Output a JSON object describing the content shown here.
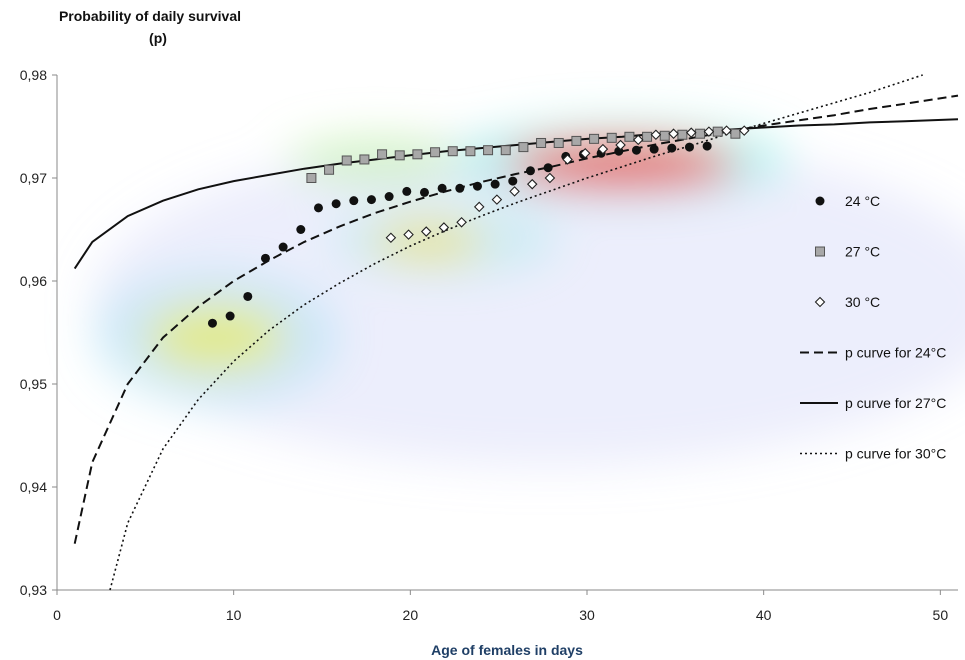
{
  "chart_data": {
    "type": "scatter",
    "title_line1": "Probability of daily survival",
    "title_line2": "(p)",
    "xlabel": "Age of females in days",
    "ylabel": "",
    "xlim": [
      0,
      51
    ],
    "ylim": [
      0.93,
      0.98
    ],
    "x_ticks": [
      0,
      10,
      20,
      30,
      40,
      50
    ],
    "x_tick_labels": [
      "0",
      "10",
      "20",
      "30",
      "40",
      "50"
    ],
    "y_ticks": [
      0.93,
      0.94,
      0.95,
      0.96,
      0.97,
      0.98
    ],
    "y_tick_labels": [
      "0,93",
      "0,94",
      "0,95",
      "0,96",
      "0,97",
      "0,98"
    ],
    "grid": false,
    "legend_position": "right",
    "series": [
      {
        "name": "24 °C",
        "kind": "points",
        "marker": "circle",
        "color": "#111111",
        "x": [
          8.8,
          9.8,
          10.8,
          11.8,
          12.8,
          13.8,
          14.8,
          15.8,
          16.8,
          17.8,
          18.8,
          19.8,
          20.8,
          21.8,
          22.8,
          23.8,
          24.8,
          25.8,
          26.8,
          27.8,
          28.8,
          29.8,
          30.8,
          31.8,
          32.8,
          33.8,
          34.8,
          35.8,
          36.8
        ],
        "y": [
          0.9559,
          0.9566,
          0.9585,
          0.9622,
          0.9633,
          0.965,
          0.9671,
          0.9675,
          0.9678,
          0.9679,
          0.9682,
          0.9687,
          0.9686,
          0.969,
          0.969,
          0.9692,
          0.9694,
          0.9697,
          0.9707,
          0.971,
          0.9721,
          0.9723,
          0.9724,
          0.9726,
          0.9727,
          0.9728,
          0.9729,
          0.973,
          0.9731
        ]
      },
      {
        "name": "27 °C",
        "kind": "points",
        "marker": "square",
        "color": "#9a9a9a",
        "x": [
          14.4,
          15.4,
          16.4,
          17.4,
          18.4,
          19.4,
          20.4,
          21.4,
          22.4,
          23.4,
          24.4,
          25.4,
          26.4,
          27.4,
          28.4,
          29.4,
          30.4,
          31.4,
          32.4,
          33.4,
          34.4,
          35.4,
          36.4,
          37.4,
          38.4
        ],
        "y": [
          0.97,
          0.9708,
          0.9717,
          0.9718,
          0.9723,
          0.9722,
          0.9723,
          0.9725,
          0.9726,
          0.9726,
          0.9727,
          0.9727,
          0.973,
          0.9734,
          0.9734,
          0.9736,
          0.9738,
          0.9739,
          0.974,
          0.974,
          0.9741,
          0.9742,
          0.9743,
          0.9745,
          0.9743
        ]
      },
      {
        "name": "30 °C",
        "kind": "points",
        "marker": "diamond",
        "color": "#222222",
        "x": [
          18.9,
          19.9,
          20.9,
          21.9,
          22.9,
          23.9,
          24.9,
          25.9,
          26.9,
          27.9,
          28.9,
          29.9,
          30.9,
          31.9,
          32.9,
          33.9,
          34.9,
          35.9,
          36.9,
          37.9,
          38.9
        ],
        "y": [
          0.9642,
          0.9645,
          0.9648,
          0.9652,
          0.9657,
          0.9672,
          0.9679,
          0.9687,
          0.9694,
          0.97,
          0.9718,
          0.9724,
          0.9728,
          0.9732,
          0.9737,
          0.9742,
          0.9743,
          0.9744,
          0.9745,
          0.9746,
          0.9746
        ]
      },
      {
        "name": "p curve for 24°C",
        "kind": "line",
        "dash": "dashed",
        "color": "#111111",
        "x": [
          1,
          2,
          4,
          6,
          8,
          10,
          12,
          14,
          16,
          18,
          20,
          22,
          24,
          26,
          28,
          30,
          32,
          34,
          36,
          38,
          40,
          42,
          44,
          46,
          48,
          51
        ],
        "y": [
          0.9345,
          0.9424,
          0.95,
          0.9545,
          0.9575,
          0.96,
          0.962,
          0.9638,
          0.9653,
          0.9666,
          0.9677,
          0.9687,
          0.9696,
          0.9704,
          0.9711,
          0.9719,
          0.9726,
          0.9733,
          0.9739,
          0.9745,
          0.9751,
          0.9756,
          0.9761,
          0.9767,
          0.9772,
          0.978
        ]
      },
      {
        "name": "p curve for 27°C",
        "kind": "line",
        "dash": "solid",
        "color": "#111111",
        "x": [
          1,
          2,
          4,
          6,
          8,
          10,
          12,
          14,
          16,
          18,
          20,
          22,
          24,
          26,
          28,
          30,
          32,
          34,
          36,
          38,
          40,
          42,
          44,
          46,
          48,
          51
        ],
        "y": [
          0.9612,
          0.9638,
          0.9663,
          0.9678,
          0.9689,
          0.9697,
          0.9703,
          0.9709,
          0.9714,
          0.9718,
          0.9722,
          0.9726,
          0.9729,
          0.9732,
          0.9735,
          0.9738,
          0.974,
          0.9743,
          0.9745,
          0.9747,
          0.9749,
          0.9751,
          0.9752,
          0.9754,
          0.9755,
          0.9757
        ]
      },
      {
        "name": "p curve for 30°C",
        "kind": "line",
        "dash": "dotted",
        "color": "#111111",
        "x": [
          3,
          4,
          6,
          8,
          10,
          12,
          14,
          16,
          18,
          20,
          22,
          24,
          26,
          28,
          30,
          32,
          34,
          36,
          38,
          40,
          42,
          44,
          46,
          49
        ],
        "y": [
          0.93,
          0.9365,
          0.9437,
          0.9485,
          0.9522,
          0.9552,
          0.9577,
          0.9598,
          0.9617,
          0.9634,
          0.9649,
          0.9663,
          0.9676,
          0.9688,
          0.97,
          0.9711,
          0.9722,
          0.9732,
          0.9743,
          0.9753,
          0.9763,
          0.9773,
          0.9783,
          0.98
        ]
      }
    ],
    "heatmap_overlay": {
      "comment_free": true,
      "spots": [
        {
          "cx": 32,
          "cy": 0.9713,
          "rx": 6.5,
          "ry": 0.0022,
          "color": "#ff2a2a",
          "opacity": 0.75
        },
        {
          "cx": 21,
          "cy": 0.9638,
          "rx": 3.2,
          "ry": 0.0018,
          "color": "#ffe03a",
          "opacity": 0.6
        },
        {
          "cx": 9,
          "cy": 0.9545,
          "rx": 4,
          "ry": 0.0032,
          "color": "#f4ef3a",
          "opacity": 0.6
        },
        {
          "cx": 18,
          "cy": 0.9718,
          "rx": 5,
          "ry": 0.0022,
          "color": "#b8f09a",
          "opacity": 0.55
        },
        {
          "cx": 32,
          "cy": 0.9718,
          "rx": 9.5,
          "ry": 0.0038,
          "color": "#6ef0e0",
          "opacity": 0.45
        },
        {
          "cx": 9,
          "cy": 0.9545,
          "rx": 7,
          "ry": 0.0065,
          "color": "#8fdcf0",
          "opacity": 0.35
        },
        {
          "cx": 22,
          "cy": 0.964,
          "rx": 6.5,
          "ry": 0.0035,
          "color": "#9fe8e8",
          "opacity": 0.4
        },
        {
          "cx": 28,
          "cy": 0.958,
          "rx": 26,
          "ry": 0.016,
          "color": "#c9cdf5",
          "opacity": 0.35
        }
      ]
    }
  }
}
